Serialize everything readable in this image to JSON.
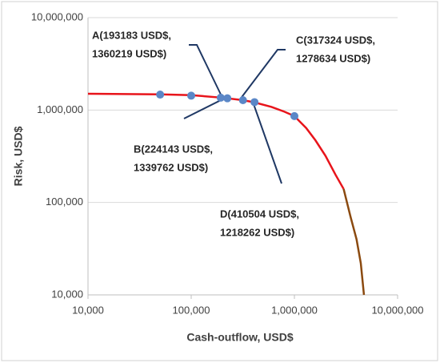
{
  "chart_data": {
    "type": "line",
    "x_label": "Cash-outflow, USD$",
    "y_label": "Risk, USD$",
    "log_x": true,
    "log_y": true,
    "grid": true,
    "xlim": [
      10000,
      10000000
    ],
    "ylim": [
      10000,
      10000000
    ],
    "xticks": [
      {
        "value": 10000,
        "label": "10,000"
      },
      {
        "value": 100000,
        "label": "100,000"
      },
      {
        "value": 1000000,
        "label": "1,000,000"
      },
      {
        "value": 10000000,
        "label": "10,000,000"
      }
    ],
    "yticks": [
      {
        "value": 10000,
        "label": "10,000"
      },
      {
        "value": 100000,
        "label": "100,000"
      },
      {
        "value": 1000000,
        "label": "1,000,000"
      },
      {
        "value": 10000000,
        "label": "10,000,000"
      }
    ],
    "series": [
      {
        "style": "line",
        "color": "#e8141b",
        "x": [
          10000,
          50000,
          100000,
          200000,
          300000,
          400000,
          600000,
          800000,
          1000000,
          1300000,
          1600000,
          2000000,
          2500000,
          3000000
        ],
        "values": [
          1500000,
          1480000,
          1450000,
          1360000,
          1290000,
          1220000,
          1080000,
          960000,
          860000,
          640000,
          470000,
          320000,
          200000,
          140000
        ]
      },
      {
        "style": "line",
        "color": "#8b4a10",
        "x": [
          3000000,
          3500000,
          4000000,
          4400000,
          4720000
        ],
        "values": [
          140000,
          70000,
          40000,
          22000,
          10000
        ]
      },
      {
        "style": "markers",
        "color": "#5b87c7",
        "x": [
          50000,
          100000,
          193183,
          224143,
          317324,
          410504,
          1000000
        ],
        "values": [
          1470000,
          1430000,
          1360219,
          1339762,
          1278634,
          1218262,
          860000
        ]
      }
    ],
    "annotations": [
      {
        "lines": [
          "A(193183 USD$,",
          "1360219 USD$)"
        ]
      },
      {
        "lines": [
          "B(224143 USD$,",
          "1339762 USD$)"
        ]
      },
      {
        "lines": [
          "C(317324 USD$,",
          "1278634 USD$)"
        ]
      },
      {
        "lines": [
          "D(410504 USD$,",
          "1218262 USD$)"
        ]
      }
    ]
  }
}
